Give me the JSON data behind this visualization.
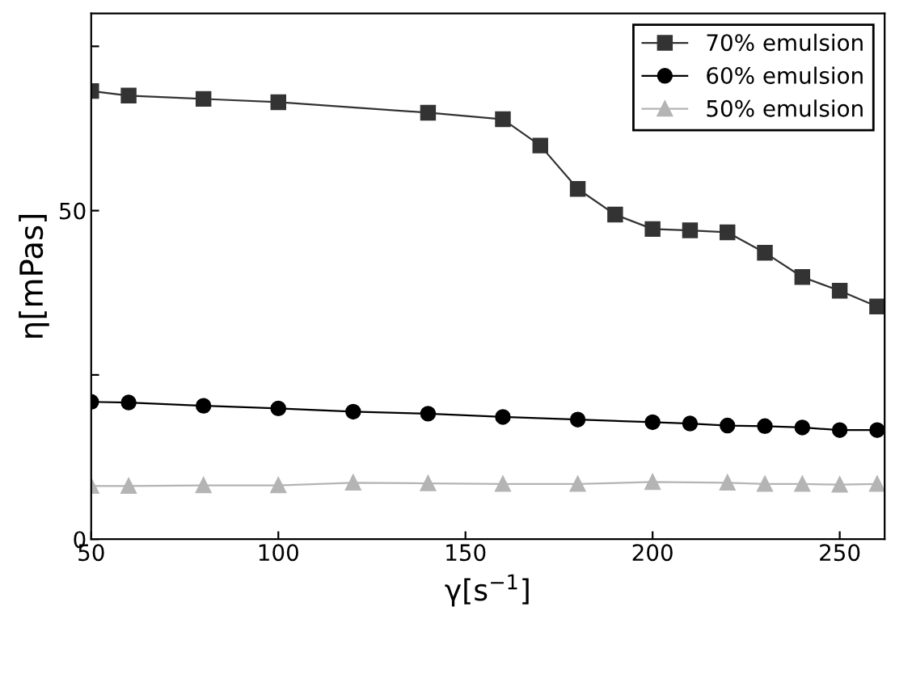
{
  "chart_data": {
    "type": "line",
    "xlabel": "γ[s$^{−1}$]",
    "ylabel": "η[mPas]",
    "xlim": [
      50,
      262
    ],
    "xticks": [
      50,
      100,
      150,
      200,
      250
    ],
    "ylim": [
      0,
      80
    ],
    "yticks": [
      0,
      {
        "value": 25,
        "label": null
      },
      50,
      {
        "value": 75,
        "label": null
      }
    ],
    "grid": false,
    "legend": "top right",
    "series": [
      {
        "name": "70% emulsion",
        "color": "#333333",
        "marker": "square",
        "x": [
          50,
          60,
          80,
          100,
          140,
          160,
          170,
          180,
          190,
          200,
          210,
          220,
          230,
          240,
          250,
          260
        ],
        "values": [
          68.2,
          67.5,
          67.0,
          66.5,
          64.9,
          63.9,
          59.9,
          53.3,
          49.4,
          47.2,
          47.0,
          46.7,
          43.6,
          39.9,
          37.8,
          35.4
        ]
      },
      {
        "name": "60% emulsion",
        "color": "#000000",
        "marker": "circle",
        "x": [
          50,
          60,
          80,
          100,
          120,
          140,
          160,
          180,
          200,
          210,
          220,
          230,
          240,
          250,
          260
        ],
        "values": [
          20.9,
          20.8,
          20.3,
          19.9,
          19.4,
          19.1,
          18.6,
          18.2,
          17.8,
          17.6,
          17.3,
          17.2,
          17.0,
          16.6,
          16.6
        ]
      },
      {
        "name": "50% emulsion",
        "color": "#b4b4b4",
        "marker": "triangle",
        "x": [
          50,
          60,
          80,
          100,
          120,
          140,
          160,
          180,
          200,
          220,
          230,
          240,
          250,
          260
        ],
        "values": [
          8.1,
          8.1,
          8.2,
          8.2,
          8.6,
          8.5,
          8.4,
          8.4,
          8.7,
          8.6,
          8.4,
          8.4,
          8.3,
          8.4
        ]
      }
    ]
  }
}
